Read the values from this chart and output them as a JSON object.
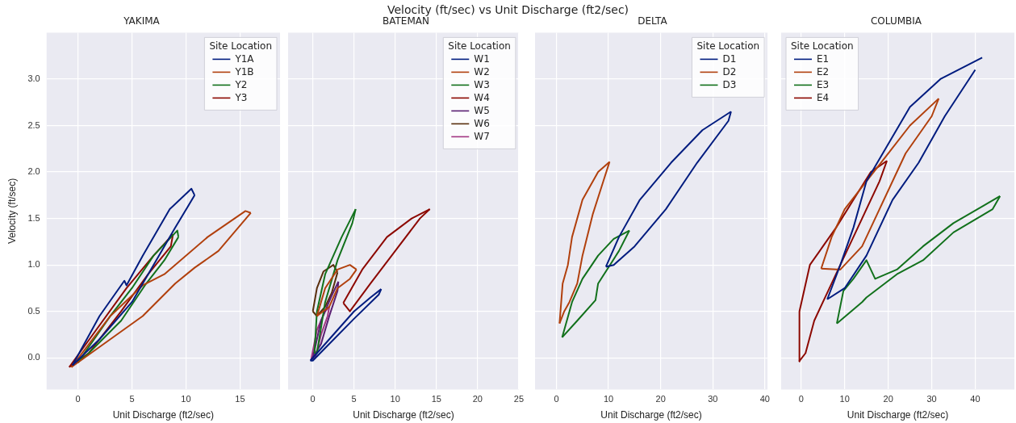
{
  "chart_data": [
    {
      "type": "line",
      "title": "YAKIMA",
      "annotations": [
        "Velocity (ft/sec) vs Unit Discharge (ft2/sec)"
      ],
      "xlabel": "Unit Discharge (ft2/sec)",
      "ylabel": "Velocity (ft/sec)",
      "xlim": [
        -2.9,
        18.7
      ],
      "xticks": [
        0,
        5,
        10,
        15
      ],
      "ylim": [
        -0.34,
        3.5
      ],
      "yticks": [
        {
          "value": 0,
          "label": "0.0"
        },
        {
          "value": 0.5,
          "label": "0.5"
        },
        {
          "value": 1,
          "label": "1.0"
        },
        {
          "value": 1.5,
          "label": "1.5"
        },
        {
          "value": 2,
          "label": "2.0"
        },
        {
          "value": 2.5,
          "label": "2.5"
        },
        {
          "value": 3,
          "label": "3.0"
        }
      ],
      "grid": true,
      "legend": "top right",
      "legend_title": "Site Location",
      "marker": "none",
      "line_style": "solid",
      "series": [
        {
          "name": "Y1A",
          "color": "#001c7f",
          "x": [
            -0.5,
            2,
            4.3,
            4.5,
            6,
            8.5,
            10.5,
            10.8
          ],
          "values": [
            -0.08,
            0.45,
            0.83,
            0.78,
            1.1,
            1.6,
            1.82,
            1.75
          ]
        },
        {
          "color": "#001c7f",
          "x": [
            -0.5,
            2,
            5,
            7,
            9,
            10.8
          ],
          "values": [
            -0.08,
            0.2,
            0.6,
            1.0,
            1.4,
            1.75
          ]
        },
        {
          "name": "Y1B",
          "color": "#b1400d",
          "x": [
            -0.6,
            3,
            6,
            8,
            12,
            15.5,
            16
          ],
          "values": [
            -0.1,
            0.45,
            0.78,
            0.9,
            1.3,
            1.58,
            1.56
          ]
        },
        {
          "color": "#b1400d",
          "x": [
            -0.6,
            3,
            6,
            9,
            10.8,
            13,
            16
          ],
          "values": [
            -0.1,
            0.2,
            0.45,
            0.8,
            0.97,
            1.15,
            1.56
          ]
        },
        {
          "name": "Y2",
          "color": "#12711c",
          "x": [
            0,
            3,
            5,
            7,
            9.2,
            9.3
          ],
          "values": [
            -0.05,
            0.45,
            0.75,
            1.1,
            1.37,
            1.3
          ]
        },
        {
          "color": "#12711c",
          "x": [
            0,
            1,
            4,
            6.2,
            8,
            9.3
          ],
          "values": [
            -0.05,
            0.05,
            0.4,
            0.78,
            1.05,
            1.3
          ]
        },
        {
          "name": "Y3",
          "color": "#8c0800",
          "x": [
            -0.8,
            2,
            4.5,
            7,
            8.8
          ],
          "values": [
            -0.1,
            0.35,
            0.75,
            1.1,
            1.33
          ]
        },
        {
          "color": "#8c0800",
          "x": [
            -0.8,
            1,
            4,
            6.5,
            8.6,
            8.8
          ],
          "values": [
            -0.1,
            0.05,
            0.5,
            0.9,
            1.2,
            1.33
          ]
        }
      ]
    },
    {
      "type": "line",
      "title": "BATEMAN",
      "xlabel": "Unit Discharge (ft2/sec)",
      "xlim": [
        -3,
        25
      ],
      "xticks": [
        0,
        5,
        10,
        15,
        20,
        25
      ],
      "ylim": [
        -0.34,
        3.5
      ],
      "yticks": [
        0,
        0.5,
        1,
        1.5,
        2,
        2.5,
        3
      ],
      "tick_labels": "x",
      "grid": true,
      "legend": "top right",
      "legend_title": "Site Location",
      "marker": "none",
      "line_style": "solid",
      "series": [
        {
          "name": "W1",
          "color": "#001c7f",
          "x": [
            -0.3,
            3,
            5,
            7,
            8.3
          ],
          "values": [
            -0.03,
            0.3,
            0.5,
            0.65,
            0.74
          ]
        },
        {
          "color": "#001c7f",
          "x": [
            -0.3,
            0,
            2,
            5,
            8,
            8.3
          ],
          "values": [
            -0.03,
            -0.03,
            0.15,
            0.42,
            0.68,
            0.74
          ]
        },
        {
          "name": "W2",
          "color": "#b1400d",
          "x": [
            0.5,
            1.5,
            3,
            4.5,
            5.3
          ],
          "values": [
            0.45,
            0.75,
            0.95,
            1.0,
            0.95
          ]
        },
        {
          "color": "#b1400d",
          "x": [
            0.5,
            2,
            3,
            4.5,
            5.3
          ],
          "values": [
            0.45,
            0.55,
            0.75,
            0.85,
            0.95
          ]
        },
        {
          "name": "W3",
          "color": "#12711c",
          "x": [
            0.2,
            0.5,
            1.5,
            3.5,
            5.2
          ],
          "values": [
            0.05,
            0.5,
            0.9,
            1.3,
            1.6
          ]
        },
        {
          "color": "#12711c",
          "x": [
            0.2,
            0.5,
            1.5,
            3,
            4.8,
            5.2
          ],
          "values": [
            0.05,
            0.05,
            0.6,
            1.05,
            1.45,
            1.6
          ]
        },
        {
          "name": "W4",
          "color": "#8c0800",
          "x": [
            3.7,
            6,
            9,
            12,
            14.2
          ],
          "values": [
            0.59,
            0.95,
            1.3,
            1.5,
            1.6
          ]
        },
        {
          "color": "#8c0800",
          "x": [
            3.7,
            4.5,
            7,
            10,
            13,
            14.2
          ],
          "values": [
            0.59,
            0.5,
            0.8,
            1.15,
            1.5,
            1.6
          ]
        },
        {
          "name": "W5",
          "color": "#591e71",
          "x": [
            0,
            1,
            2.2,
            3.1
          ],
          "values": [
            0,
            0.4,
            0.65,
            0.82
          ]
        },
        {
          "color": "#591e71",
          "x": [
            0,
            1,
            2,
            3,
            3.1
          ],
          "values": [
            0,
            0.15,
            0.45,
            0.72,
            0.82
          ]
        },
        {
          "name": "W6",
          "color": "#592f0d",
          "x": [
            0,
            0.5,
            1.3,
            2.5,
            3
          ],
          "values": [
            0.5,
            0.75,
            0.93,
            1.0,
            0.92
          ]
        },
        {
          "color": "#592f0d",
          "x": [
            0,
            0.5,
            1.5,
            2.3,
            3
          ],
          "values": [
            0.5,
            0.45,
            0.55,
            0.7,
            0.92
          ]
        },
        {
          "name": "W7",
          "color": "#a23582",
          "x": [
            -0.2,
            0.5,
            1.5,
            2
          ],
          "values": [
            -0.02,
            0.3,
            0.5,
            0.55
          ]
        },
        {
          "color": "#a23582",
          "x": [
            -0.2,
            0.3,
            1,
            1.8,
            2
          ],
          "values": [
            -0.02,
            0,
            0.25,
            0.45,
            0.55
          ]
        }
      ]
    },
    {
      "type": "line",
      "title": "DELTA",
      "xlabel": "Unit Discharge (ft2/sec)",
      "xlim": [
        -4.1,
        40.5
      ],
      "xticks": [
        0,
        10,
        20,
        30,
        40
      ],
      "ylim": [
        -0.34,
        3.5
      ],
      "yticks": [
        0,
        0.5,
        1,
        1.5,
        2,
        2.5,
        3
      ],
      "tick_labels": "x",
      "grid": true,
      "legend": "top right",
      "legend_title": "Site Location",
      "marker": "none",
      "line_style": "solid",
      "series": [
        {
          "name": "D1",
          "color": "#001c7f",
          "x": [
            9.5,
            12,
            16,
            22,
            28,
            33.5
          ],
          "values": [
            0.98,
            1.3,
            1.7,
            2.1,
            2.45,
            2.65
          ]
        },
        {
          "color": "#001c7f",
          "x": [
            9.5,
            11,
            15,
            21,
            27,
            33,
            33.5
          ],
          "values": [
            0.98,
            1.0,
            1.2,
            1.6,
            2.1,
            2.55,
            2.65
          ]
        },
        {
          "name": "D2",
          "color": "#b1400d",
          "x": [
            0.6,
            1.2,
            2.2,
            3,
            5,
            8,
            10.2
          ],
          "values": [
            0.37,
            0.8,
            1.0,
            1.3,
            1.7,
            2.0,
            2.11
          ]
        },
        {
          "color": "#b1400d",
          "x": [
            0.6,
            1.5,
            2.5,
            4,
            5,
            7,
            9,
            10.2
          ],
          "values": [
            0.37,
            0.5,
            0.6,
            0.8,
            1.1,
            1.55,
            1.9,
            2.11
          ]
        },
        {
          "name": "D3",
          "color": "#12711c",
          "x": [
            1.1,
            3,
            5,
            8,
            11,
            14
          ],
          "values": [
            0.22,
            0.6,
            0.85,
            1.1,
            1.28,
            1.37
          ]
        },
        {
          "color": "#12711c",
          "x": [
            1.1,
            4,
            7.5,
            8,
            12,
            14
          ],
          "values": [
            0.22,
            0.4,
            0.62,
            0.8,
            1.15,
            1.37
          ]
        }
      ]
    },
    {
      "type": "line",
      "title": "COLUMBIA",
      "xlabel": "Unit Discharge (ft2/sec)",
      "xlim": [
        -4.6,
        49
      ],
      "xticks": [
        0,
        10,
        20,
        30,
        40
      ],
      "ylim": [
        -0.34,
        3.5
      ],
      "yticks": [
        0,
        0.5,
        1,
        1.5,
        2,
        2.5,
        3
      ],
      "tick_labels": "x",
      "grid": true,
      "legend": "top left",
      "legend_title": "Site Location",
      "marker": "none",
      "line_style": "solid",
      "series": [
        {
          "name": "E1",
          "color": "#001c7f",
          "x": [
            6,
            9,
            12,
            15,
            20,
            25,
            32,
            41.6
          ],
          "values": [
            0.63,
            1.0,
            1.4,
            1.9,
            2.3,
            2.7,
            3.0,
            3.23
          ]
        },
        {
          "color": "#001c7f",
          "x": [
            6,
            10,
            15,
            21,
            27,
            33,
            40
          ],
          "values": [
            0.63,
            0.75,
            1.1,
            1.7,
            2.1,
            2.6,
            3.1
          ]
        },
        {
          "name": "E2",
          "color": "#b1400d",
          "x": [
            4.6,
            7,
            10,
            15,
            20,
            25,
            31.6
          ],
          "values": [
            0.96,
            1.3,
            1.6,
            1.9,
            2.2,
            2.5,
            2.79
          ]
        },
        {
          "color": "#b1400d",
          "x": [
            4.6,
            9,
            14,
            18,
            24,
            30,
            31.6
          ],
          "values": [
            0.96,
            0.95,
            1.2,
            1.6,
            2.2,
            2.6,
            2.79
          ]
        },
        {
          "name": "E3",
          "color": "#12711c",
          "x": [
            8.2,
            9.7,
            12,
            15,
            17,
            22,
            28,
            35,
            45.7
          ],
          "values": [
            0.37,
            0.72,
            0.85,
            1.05,
            0.85,
            0.95,
            1.2,
            1.45,
            1.74
          ]
        },
        {
          "color": "#12711c",
          "x": [
            8.2,
            14,
            15,
            22,
            28,
            35,
            44,
            45.7
          ],
          "values": [
            0.37,
            0.6,
            0.65,
            0.9,
            1.05,
            1.35,
            1.6,
            1.74
          ]
        },
        {
          "name": "E4",
          "color": "#8c0800",
          "x": [
            -0.5,
            -0.4,
            2,
            5,
            8,
            12,
            16,
            19.7
          ],
          "values": [
            -0.04,
            0.5,
            1.0,
            1.2,
            1.4,
            1.7,
            2.0,
            2.12
          ]
        },
        {
          "color": "#8c0800",
          "x": [
            -0.5,
            1,
            3,
            6,
            9,
            13,
            18,
            19.7
          ],
          "values": [
            -0.04,
            0.05,
            0.4,
            0.7,
            1.0,
            1.4,
            1.9,
            2.12
          ]
        }
      ]
    }
  ]
}
